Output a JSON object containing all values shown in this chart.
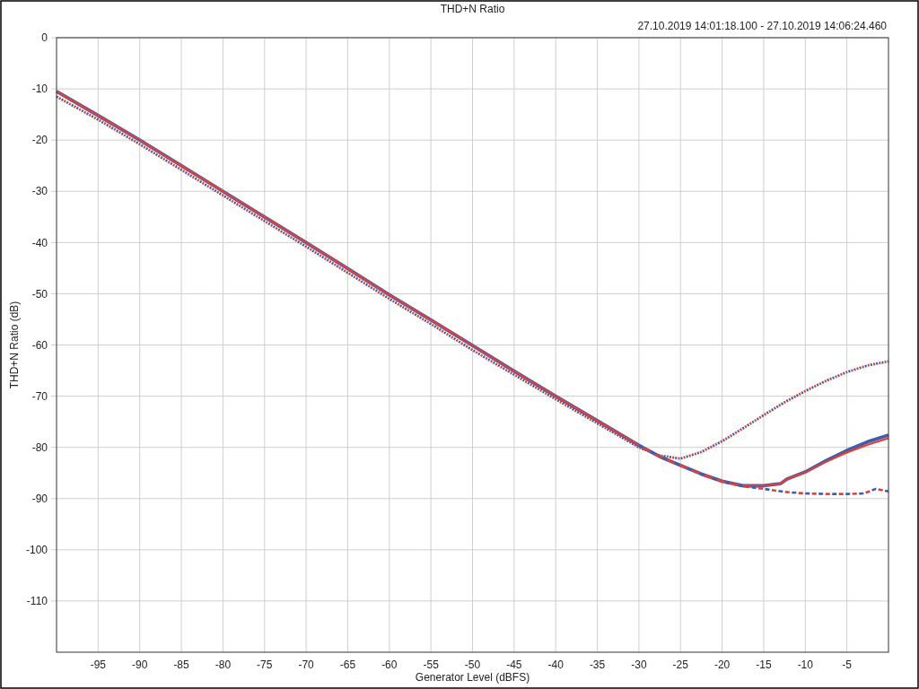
{
  "chart_data": {
    "type": "line",
    "title": "THD+N Ratio",
    "subtitle": "27.10.2019 14:01:18.100 - 27.10.2019 14:06:24.460",
    "xlabel": "Generator Level (dBFS)",
    "ylabel": "THD+N Ratio (dB)",
    "xlim": [
      -100,
      0
    ],
    "xticks": [
      -95,
      -90,
      -85,
      -80,
      -75,
      -70,
      -65,
      -60,
      -55,
      -50,
      -45,
      -40,
      -35,
      -30,
      -25,
      -20,
      -15,
      -10,
      -5
    ],
    "ylim": [
      -120,
      0
    ],
    "yticks": [
      0,
      -10,
      -20,
      -30,
      -40,
      -50,
      -60,
      -70,
      -80,
      -90,
      -100,
      -110
    ],
    "grid": true,
    "series": [
      {
        "color": "#3f5ea8",
        "line_style": "dotted",
        "x": [
          -100,
          -95,
          -90,
          -85,
          -80,
          -75,
          -70,
          -65,
          -60,
          -55,
          -50,
          -45,
          -40,
          -35,
          -30,
          -27.5,
          -25,
          -22.5,
          -20,
          -17.5,
          -15,
          -12.5,
          -10,
          -7.5,
          -5,
          -2.5,
          0
        ],
        "values": [
          -11.5,
          -16.0,
          -20.8,
          -25.8,
          -30.8,
          -35.8,
          -40.8,
          -45.9,
          -51.0,
          -55.9,
          -61.0,
          -65.8,
          -70.6,
          -75.3,
          -80.0,
          -81.6,
          -82.2,
          -80.9,
          -78.8,
          -76.3,
          -73.7,
          -71.2,
          -69.0,
          -67.0,
          -65.3,
          -64.0,
          -63.2
        ]
      },
      {
        "color": "#e0403c",
        "line_style": "dotted",
        "x": [
          -100,
          -95,
          -90,
          -85,
          -80,
          -75,
          -70,
          -65,
          -60,
          -55,
          -50,
          -45,
          -40,
          -35,
          -30,
          -27.5,
          -25,
          -22.5,
          -20,
          -17.5,
          -15,
          -12.5,
          -10,
          -7.5,
          -5,
          -2.5,
          0
        ],
        "values": [
          -11.5,
          -16.0,
          -20.8,
          -25.8,
          -30.8,
          -35.8,
          -40.8,
          -45.9,
          -51.0,
          -55.9,
          -61.0,
          -65.8,
          -70.6,
          -75.3,
          -80.0,
          -81.6,
          -82.2,
          -80.9,
          -78.8,
          -76.3,
          -73.7,
          -71.2,
          -69.0,
          -67.0,
          -65.3,
          -64.0,
          -63.2
        ]
      },
      {
        "color": "#3f5ea8",
        "line_style": "solid",
        "x": [
          -100,
          -95,
          -90,
          -85,
          -80,
          -75,
          -70,
          -65,
          -60,
          -55,
          -50,
          -45,
          -40,
          -35,
          -32.5,
          -30,
          -27.5,
          -25,
          -22.5,
          -20,
          -17.5,
          -15,
          -13,
          -12.2,
          -10,
          -7.5,
          -5,
          -2.5,
          0
        ],
        "values": [
          -10.5,
          -15.2,
          -20.0,
          -25.0,
          -30.0,
          -35.0,
          -40.0,
          -45.1,
          -50.2,
          -55.1,
          -60.1,
          -65.1,
          -70.0,
          -74.8,
          -77.2,
          -79.6,
          -81.8,
          -83.5,
          -85.2,
          -86.6,
          -87.5,
          -87.5,
          -87.1,
          -86.2,
          -84.8,
          -82.6,
          -80.6,
          -78.9,
          -77.6
        ]
      },
      {
        "color": "#e0403c",
        "line_style": "solid",
        "x": [
          -100,
          -95,
          -90,
          -85,
          -80,
          -75,
          -70,
          -65,
          -60,
          -55,
          -50,
          -45,
          -40,
          -35,
          -32.5,
          -30,
          -27.5,
          -25,
          -22.5,
          -20,
          -17.5,
          -15,
          -13,
          -12.2,
          -10,
          -7.5,
          -5,
          -2.5,
          0
        ],
        "values": [
          -10.5,
          -15.2,
          -20.0,
          -25.0,
          -30.0,
          -35.0,
          -40.0,
          -45.1,
          -50.2,
          -55.1,
          -60.1,
          -65.1,
          -70.0,
          -74.8,
          -77.2,
          -79.6,
          -81.8,
          -83.5,
          -85.2,
          -86.6,
          -87.5,
          -87.5,
          -87.1,
          -86.2,
          -84.9,
          -82.8,
          -81.0,
          -79.5,
          -78.2
        ]
      },
      {
        "color": "#3f5ea8",
        "line_style": "dashed",
        "x": [
          -30,
          -27.5,
          -25,
          -22.5,
          -20,
          -17.5,
          -15,
          -12.5,
          -10,
          -7.5,
          -5,
          -3,
          -1.5,
          0
        ],
        "values": [
          -79.6,
          -81.8,
          -83.5,
          -85.2,
          -86.7,
          -87.6,
          -88.1,
          -88.7,
          -89.0,
          -89.1,
          -89.1,
          -89.0,
          -88.1,
          -88.6
        ]
      },
      {
        "color": "#e0403c",
        "line_style": "dashed",
        "x": [
          -30,
          -27.5,
          -25,
          -22.5,
          -20,
          -17.5,
          -15,
          -12.5,
          -10,
          -7.5,
          -5,
          -3,
          -1.5,
          0
        ],
        "values": [
          -79.6,
          -81.8,
          -83.5,
          -85.2,
          -86.7,
          -87.6,
          -88.1,
          -88.7,
          -89.0,
          -89.1,
          -89.1,
          -89.0,
          -88.1,
          -88.6
        ]
      }
    ]
  }
}
